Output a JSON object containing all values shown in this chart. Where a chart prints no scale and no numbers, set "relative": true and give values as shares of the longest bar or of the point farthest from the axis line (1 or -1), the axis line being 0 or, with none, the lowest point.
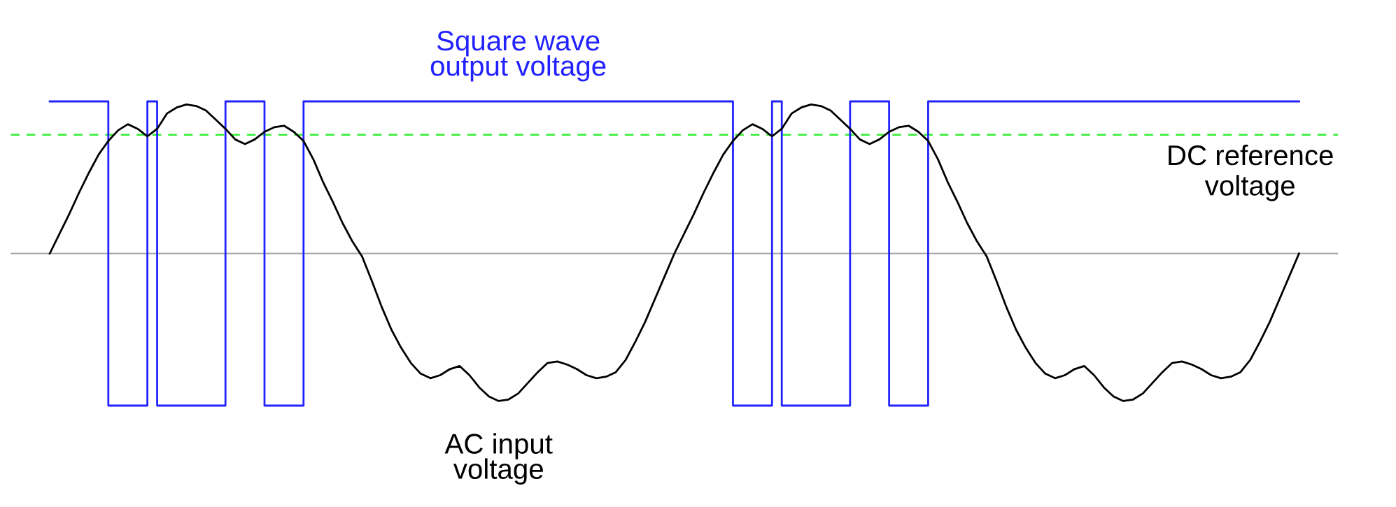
{
  "chart_data": {
    "type": "line",
    "relative": true,
    "categories": [
      null,
      null,
      null,
      null,
      null,
      null,
      null,
      null,
      null,
      null,
      null,
      null,
      null,
      null,
      null,
      null,
      null,
      null,
      null,
      null,
      null,
      null,
      null,
      null,
      null,
      null,
      null,
      null,
      null,
      null,
      null,
      null,
      null,
      null,
      null,
      null,
      null,
      null,
      null,
      null,
      null,
      null,
      null,
      null,
      null,
      null,
      null,
      null,
      null,
      null,
      null,
      null,
      null,
      null,
      null,
      null,
      null,
      null,
      null,
      null,
      null,
      null,
      null,
      null,
      null,
      null,
      null,
      null,
      null,
      null,
      null,
      null,
      null,
      null,
      null,
      null,
      null,
      null,
      null,
      null,
      null,
      null,
      null,
      null,
      null,
      null,
      null,
      null,
      null,
      null,
      null,
      null,
      null,
      null,
      null,
      null,
      null,
      null,
      null,
      null,
      null,
      null,
      null,
      null,
      null,
      null,
      null,
      null,
      null,
      null,
      null,
      null,
      null,
      null,
      null,
      null,
      null,
      null,
      null,
      null,
      null,
      null,
      null,
      null,
      null,
      null,
      null,
      null,
      null
    ],
    "series": [
      {
        "name": "Square wave\noutput voltage",
        "type": "step",
        "color": "#2222ff",
        "values": [
          1,
          1,
          1,
          1,
          1,
          1,
          -1,
          -1,
          -1,
          -1,
          1,
          -1,
          -1,
          -1,
          -1,
          -1,
          -1,
          -1,
          1,
          1,
          1,
          1,
          -1,
          -1,
          -1,
          -1,
          1,
          1,
          1,
          1,
          1,
          1,
          1,
          1,
          1,
          1,
          1,
          1,
          1,
          1,
          1,
          1,
          1,
          1,
          1,
          1,
          1,
          1,
          1,
          1,
          1,
          1,
          1,
          1,
          1,
          1,
          1,
          1,
          1,
          1,
          1,
          1,
          1,
          1,
          1,
          1,
          1,
          1,
          1,
          1,
          -1,
          -1,
          -1,
          -1,
          1,
          -1,
          -1,
          -1,
          -1,
          -1,
          -1,
          -1,
          1,
          1,
          1,
          1,
          -1,
          -1,
          -1,
          -1,
          1,
          1,
          1,
          1,
          1,
          1,
          1,
          1,
          1,
          1,
          1,
          1,
          1,
          1,
          1,
          1,
          1,
          1,
          1,
          1,
          1,
          1,
          1,
          1,
          1,
          1,
          1,
          1,
          1,
          1,
          1,
          1,
          1,
          1,
          1,
          1,
          1,
          1,
          1
        ]
      },
      {
        "name": "AC input\nvoltage",
        "color": "#000000",
        "values": [
          0,
          0.13,
          0.26,
          0.4,
          0.53,
          0.65,
          0.74,
          0.81,
          0.85,
          0.82,
          0.77,
          0.82,
          0.92,
          0.96,
          0.98,
          0.97,
          0.94,
          0.88,
          0.82,
          0.75,
          0.72,
          0.75,
          0.8,
          0.83,
          0.84,
          0.8,
          0.74,
          0.62,
          0.47,
          0.34,
          0.2,
          0.08,
          -0.02,
          -0.18,
          -0.35,
          -0.5,
          -0.62,
          -0.72,
          -0.79,
          -0.82,
          -0.8,
          -0.76,
          -0.74,
          -0.8,
          -0.88,
          -0.94,
          -0.97,
          -0.96,
          -0.92,
          -0.85,
          -0.78,
          -0.72,
          -0.71,
          -0.73,
          -0.76,
          -0.8,
          -0.82,
          -0.81,
          -0.78,
          -0.7,
          -0.58,
          -0.45,
          -0.3,
          -0.15,
          0,
          0.13,
          0.26,
          0.4,
          0.53,
          0.65,
          0.74,
          0.81,
          0.85,
          0.82,
          0.77,
          0.82,
          0.92,
          0.96,
          0.98,
          0.97,
          0.94,
          0.88,
          0.82,
          0.75,
          0.72,
          0.75,
          0.8,
          0.83,
          0.84,
          0.8,
          0.74,
          0.62,
          0.47,
          0.34,
          0.2,
          0.08,
          -0.02,
          -0.18,
          -0.35,
          -0.5,
          -0.62,
          -0.72,
          -0.79,
          -0.82,
          -0.8,
          -0.76,
          -0.74,
          -0.8,
          -0.88,
          -0.94,
          -0.97,
          -0.96,
          -0.92,
          -0.85,
          -0.78,
          -0.72,
          -0.71,
          -0.73,
          -0.76,
          -0.8,
          -0.82,
          -0.81,
          -0.78,
          -0.7,
          -0.58,
          -0.45,
          -0.3,
          -0.15,
          0
        ]
      }
    ],
    "ref_lines": [
      {
        "axis": "y",
        "value": 0.78,
        "label": "DC reference\nvoltage",
        "color": "#33ee33",
        "line_style": "dashed"
      }
    ]
  }
}
